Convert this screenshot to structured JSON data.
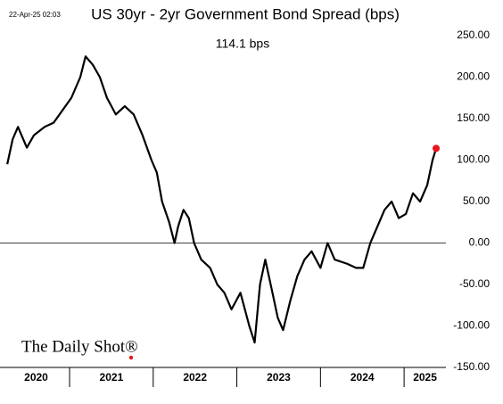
{
  "chart_data": {
    "type": "line",
    "title": "US 30yr - 2yr Government Bond Spread (bps)",
    "annotation": "114.1 bps",
    "timestamp": "22-Apr-25 02:03",
    "source": "The Daily Shot®",
    "x_categories": [
      "2020",
      "2021",
      "2022",
      "2023",
      "2024",
      "2025"
    ],
    "xticks": [
      2021,
      2022,
      2023,
      2024,
      2025
    ],
    "xlim": [
      2020.2,
      2025.5
    ],
    "ylim": [
      -150,
      250
    ],
    "yticks": [
      {
        "value": -150,
        "label": "-150.00"
      },
      {
        "value": -100,
        "label": "-100.00"
      },
      {
        "value": -50,
        "label": "-50.00"
      },
      {
        "value": 0,
        "label": "0.00"
      },
      {
        "value": 50,
        "label": "50.00"
      },
      {
        "value": 100,
        "label": "100.00"
      },
      {
        "value": 150,
        "label": "150.00"
      },
      {
        "value": 200,
        "label": "200.00"
      },
      {
        "value": 250,
        "label": "250.00"
      }
    ],
    "zero_line": true,
    "highlight_last": true,
    "highlight_color": "#e8151b",
    "x": [
      2020.255,
      2020.319,
      2020.383,
      2020.489,
      2020.574,
      2020.702,
      2020.809,
      2020.915,
      2021.021,
      2021.128,
      2021.191,
      2021.277,
      2021.362,
      2021.447,
      2021.553,
      2021.66,
      2021.766,
      2021.872,
      2021.979,
      2022.043,
      2022.106,
      2022.191,
      2022.255,
      2022.298,
      2022.362,
      2022.426,
      2022.489,
      2022.574,
      2022.681,
      2022.766,
      2022.851,
      2022.936,
      2023.043,
      2023.149,
      2023.213,
      2023.277,
      2023.34,
      2023.426,
      2023.489,
      2023.553,
      2023.638,
      2023.723,
      2023.809,
      2023.894,
      2024.0,
      2024.085,
      2024.17,
      2024.319,
      2024.426,
      2024.511,
      2024.596,
      2024.681,
      2024.766,
      2024.851,
      2024.936,
      2025.021,
      2025.106,
      2025.191,
      2025.277,
      2025.34,
      2025.383
    ],
    "series": [
      {
        "name": "US 30yr - 2yr spread",
        "color": "#000000",
        "values": [
          95,
          125,
          140,
          115,
          130,
          140,
          145,
          160,
          175,
          200,
          225,
          215,
          200,
          175,
          155,
          165,
          155,
          130,
          100,
          85,
          50,
          25,
          0,
          20,
          40,
          30,
          0,
          -20,
          -30,
          -50,
          -60,
          -80,
          -60,
          -100,
          -120,
          -50,
          -20,
          -60,
          -90,
          -105,
          -70,
          -40,
          -20,
          -10,
          -30,
          0,
          -20,
          -25,
          -30,
          -30,
          0,
          20,
          40,
          50,
          30,
          35,
          60,
          50,
          70,
          100,
          114.1
        ]
      }
    ]
  }
}
